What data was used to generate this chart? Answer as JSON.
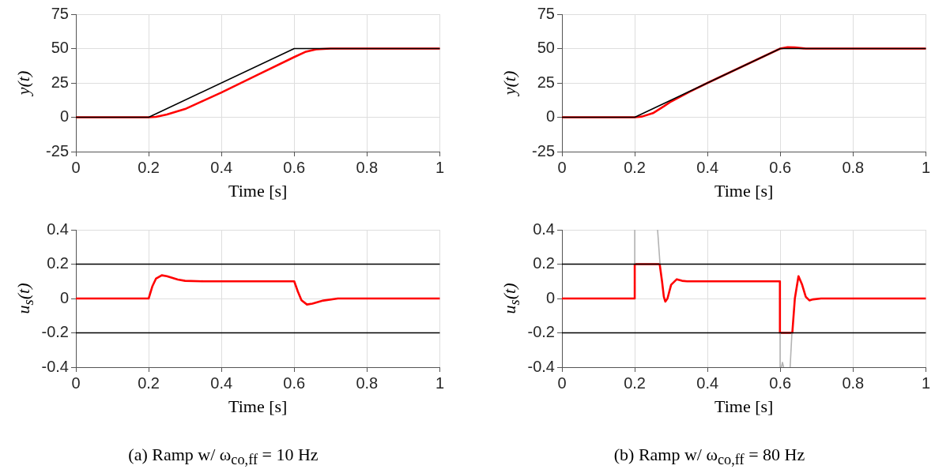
{
  "chart_data": [
    {
      "type": "line",
      "xlabel": "Time [s]",
      "ylabel": "y(t)",
      "xlim": [
        0,
        1
      ],
      "xticks": [
        0,
        0.2,
        0.4,
        0.6,
        0.8,
        1
      ],
      "ylim": [
        -25,
        75
      ],
      "yticks": [
        -25,
        0,
        25,
        50,
        75
      ],
      "grid": true,
      "series": [
        {
          "color": "#000000",
          "x": [
            0,
            0.2,
            0.6,
            1
          ],
          "values": [
            0,
            0,
            50,
            50
          ]
        },
        {
          "color": "#ff0000",
          "x": [
            0,
            0.2,
            0.22,
            0.25,
            0.3,
            0.35,
            0.4,
            0.5,
            0.6,
            0.63,
            0.66,
            0.7,
            1
          ],
          "values": [
            0,
            0,
            0.3,
            2,
            6,
            12,
            18,
            31,
            43.8,
            47.5,
            49.4,
            50,
            50
          ]
        }
      ]
    },
    {
      "type": "line",
      "xlabel": "Time [s]",
      "ylabel": "y(t)",
      "xlim": [
        0,
        1
      ],
      "xticks": [
        0,
        0.2,
        0.4,
        0.6,
        0.8,
        1
      ],
      "ylim": [
        -25,
        75
      ],
      "yticks": [
        -25,
        0,
        25,
        50,
        75
      ],
      "grid": true,
      "series": [
        {
          "color": "#000000",
          "x": [
            0,
            0.2,
            0.6,
            1
          ],
          "values": [
            0,
            0,
            50,
            50
          ]
        },
        {
          "color": "#ff0000",
          "x": [
            0,
            0.2,
            0.22,
            0.25,
            0.28,
            0.3,
            0.35,
            0.4,
            0.5,
            0.6,
            0.62,
            0.64,
            0.67,
            1
          ],
          "values": [
            0,
            0,
            0.5,
            3,
            8,
            11.5,
            18.5,
            25,
            37.5,
            50,
            51,
            50.8,
            50,
            50
          ]
        }
      ]
    },
    {
      "type": "line",
      "xlabel": "Time [s]",
      "ylabel": "u$_{s}$(t)",
      "xlim": [
        0,
        1
      ],
      "xticks": [
        0,
        0.2,
        0.4,
        0.6,
        0.8,
        1
      ],
      "ylim": [
        -0.4,
        0.4
      ],
      "yticks": [
        -0.4,
        -0.2,
        0,
        0.2,
        0.4
      ],
      "grid": true,
      "annotations": [
        "(a) Ramp w/ ω$_{co,ff}$ = 10 Hz"
      ],
      "series": [
        {
          "color": "#000000",
          "x": [
            0,
            1
          ],
          "values": [
            0.2,
            0.2
          ]
        },
        {
          "color": "#000000",
          "x": [
            0,
            1
          ],
          "values": [
            -0.2,
            -0.2
          ]
        },
        {
          "color": "#ff0000",
          "x": [
            0,
            0.2,
            0.21,
            0.22,
            0.236,
            0.25,
            0.28,
            0.3,
            0.35,
            0.6,
            0.61,
            0.62,
            0.635,
            0.65,
            0.68,
            0.72,
            1
          ],
          "values": [
            0,
            0,
            0.07,
            0.115,
            0.135,
            0.13,
            0.11,
            0.103,
            0.1,
            0.1,
            0.04,
            -0.01,
            -0.035,
            -0.03,
            -0.012,
            0,
            0
          ]
        }
      ]
    },
    {
      "type": "line",
      "xlabel": "Time [s]",
      "ylabel": "u$_{s}$(t)",
      "xlim": [
        0,
        1
      ],
      "xticks": [
        0,
        0.2,
        0.4,
        0.6,
        0.8,
        1
      ],
      "ylim": [
        -0.4,
        0.4
      ],
      "yticks": [
        -0.4,
        -0.2,
        0,
        0.2,
        0.4
      ],
      "grid": true,
      "annotations": [
        "(b) Ramp w/ ω$_{co,ff}$ = 80 Hz"
      ],
      "series": [
        {
          "color": "#000000",
          "x": [
            0,
            1
          ],
          "values": [
            0.2,
            0.2
          ]
        },
        {
          "color": "#000000",
          "x": [
            0,
            1
          ],
          "values": [
            -0.2,
            -0.2
          ]
        },
        {
          "color": "#b3b3b3",
          "x": [
            0.2,
            0.2,
            0.21,
            0.2628,
            0.2695,
            0.28,
            0.5995,
            0.5995,
            0.601,
            0.603,
            0.606,
            0.609,
            0.615,
            0.627,
            0.632
          ],
          "values": [
            0.2,
            0.4,
            null,
            0.4,
            0.2,
            null,
            -0.2,
            -0.4,
            null,
            -0.4,
            -0.372,
            -0.4,
            null,
            -0.4,
            -0.2
          ]
        },
        {
          "color": "#ff0000",
          "x": [
            0,
            0.2,
            0.2,
            0.2686,
            0.275,
            0.28,
            0.284,
            0.29,
            0.3,
            0.3155,
            0.33,
            0.344,
            0.599,
            0.599,
            0.633,
            0.64,
            0.65,
            0.66,
            0.67,
            0.68,
            0.69,
            0.712,
            1
          ],
          "values": [
            0,
            0,
            0.2,
            0.2,
            0.1,
            0.01,
            -0.018,
            0,
            0.08,
            0.112,
            0.103,
            0.1,
            0.1,
            -0.2,
            -0.2,
            0,
            0.13,
            0.08,
            0.01,
            -0.011,
            -0.005,
            0,
            0
          ]
        }
      ]
    }
  ]
}
